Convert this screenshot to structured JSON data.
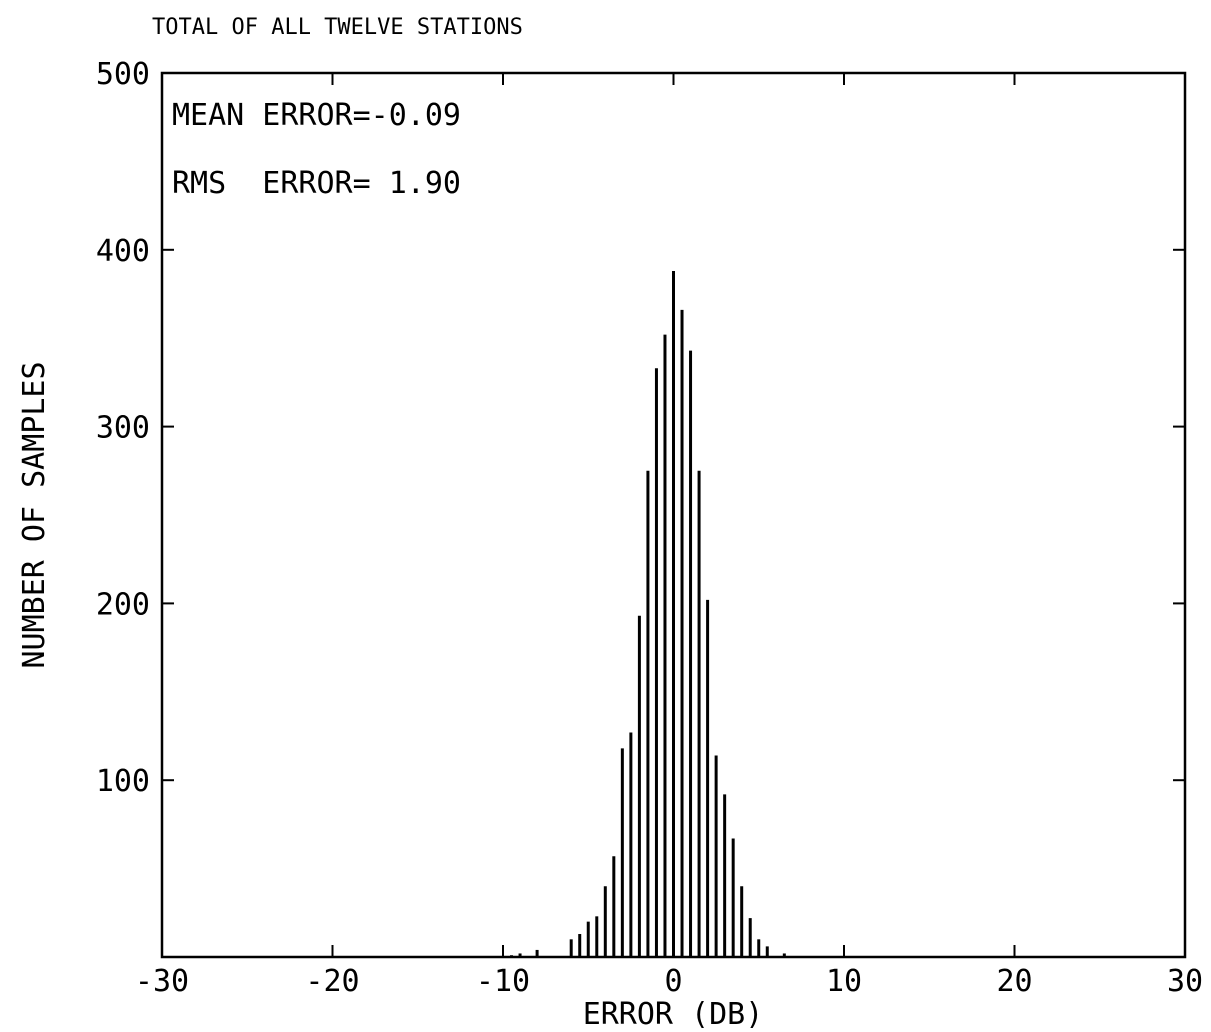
{
  "chart_data": {
    "type": "bar",
    "title": "TOTAL OF ALL TWELVE STATIONS",
    "xlabel": "ERROR (DB)",
    "ylabel": "NUMBER OF SAMPLES",
    "xlim": [
      -30,
      30
    ],
    "ylim": [
      0,
      500
    ],
    "x_ticks": [
      -30,
      -20,
      -10,
      0,
      10,
      20,
      30
    ],
    "x_tick_labels": [
      "-30",
      "-20",
      "-10",
      "0",
      "10",
      "20",
      "30"
    ],
    "y_ticks": [
      100,
      200,
      300,
      400,
      500
    ],
    "y_tick_labels": [
      "100",
      "200",
      "300",
      "400",
      "500"
    ],
    "grid": false,
    "annotations": [
      "MEAN ERROR=-0.09",
      "RMS  ERROR= 1.90"
    ],
    "bin_width": 0.5,
    "x": [
      -9.5,
      -9.0,
      -8.0,
      -6.0,
      -5.5,
      -5.0,
      -4.5,
      -4.0,
      -3.5,
      -3.0,
      -2.5,
      -2.0,
      -1.5,
      -1.0,
      -0.5,
      0.0,
      0.5,
      1.0,
      1.5,
      2.0,
      2.5,
      3.0,
      3.5,
      4.0,
      4.5,
      5.0,
      5.5,
      6.5
    ],
    "values": [
      1,
      2,
      4,
      10,
      13,
      20,
      23,
      40,
      57,
      118,
      127,
      193,
      275,
      333,
      352,
      388,
      366,
      343,
      275,
      202,
      114,
      92,
      67,
      40,
      22,
      10,
      6,
      2
    ]
  }
}
